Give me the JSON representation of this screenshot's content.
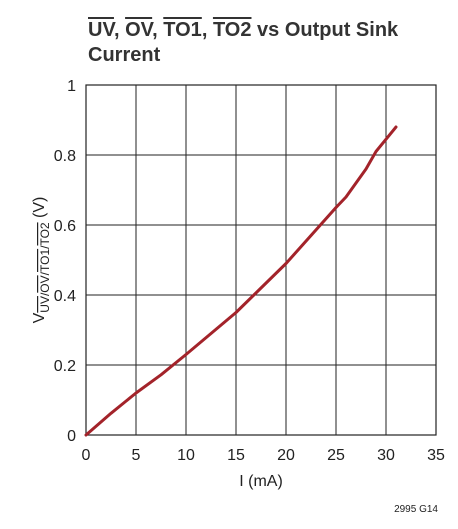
{
  "chart_data": {
    "type": "line",
    "title_line1": [
      "UV",
      ", ",
      "OV",
      ", ",
      "TO1",
      ", ",
      "TO2",
      " vs Output Sink"
    ],
    "title_line1_overlined": [
      true,
      false,
      true,
      false,
      true,
      false,
      true,
      false
    ],
    "title_line2": "Current",
    "xlabel": "I (mA)",
    "ylabel_prefix": "V",
    "ylabel_subscript": [
      "UV",
      "/",
      "OV",
      "/",
      "TO1",
      "/",
      "TO2"
    ],
    "ylabel_subscript_overlined": [
      true,
      false,
      true,
      false,
      true,
      false,
      true
    ],
    "ylabel_suffix": " (V)",
    "xlim": [
      0,
      35
    ],
    "ylim": [
      0,
      1
    ],
    "xticks": [
      0,
      5,
      10,
      15,
      20,
      25,
      30,
      35
    ],
    "yticks": [
      0,
      0.2,
      0.4,
      0.6,
      0.8,
      1
    ],
    "ytick_labels": [
      "0",
      "0.2",
      "0.4",
      "0.6",
      "0.8",
      "1"
    ],
    "grid": true,
    "series": [
      {
        "color": "#a3232a",
        "x": [
          0,
          2.5,
          5,
          7.5,
          10,
          12.5,
          15,
          17.5,
          20,
          22.5,
          25,
          26,
          28,
          29,
          31
        ],
        "y": [
          0,
          0.062,
          0.12,
          0.172,
          0.23,
          0.29,
          0.35,
          0.42,
          0.49,
          0.57,
          0.65,
          0.68,
          0.76,
          0.81,
          0.88
        ]
      }
    ],
    "footnote": "2995 G14"
  }
}
